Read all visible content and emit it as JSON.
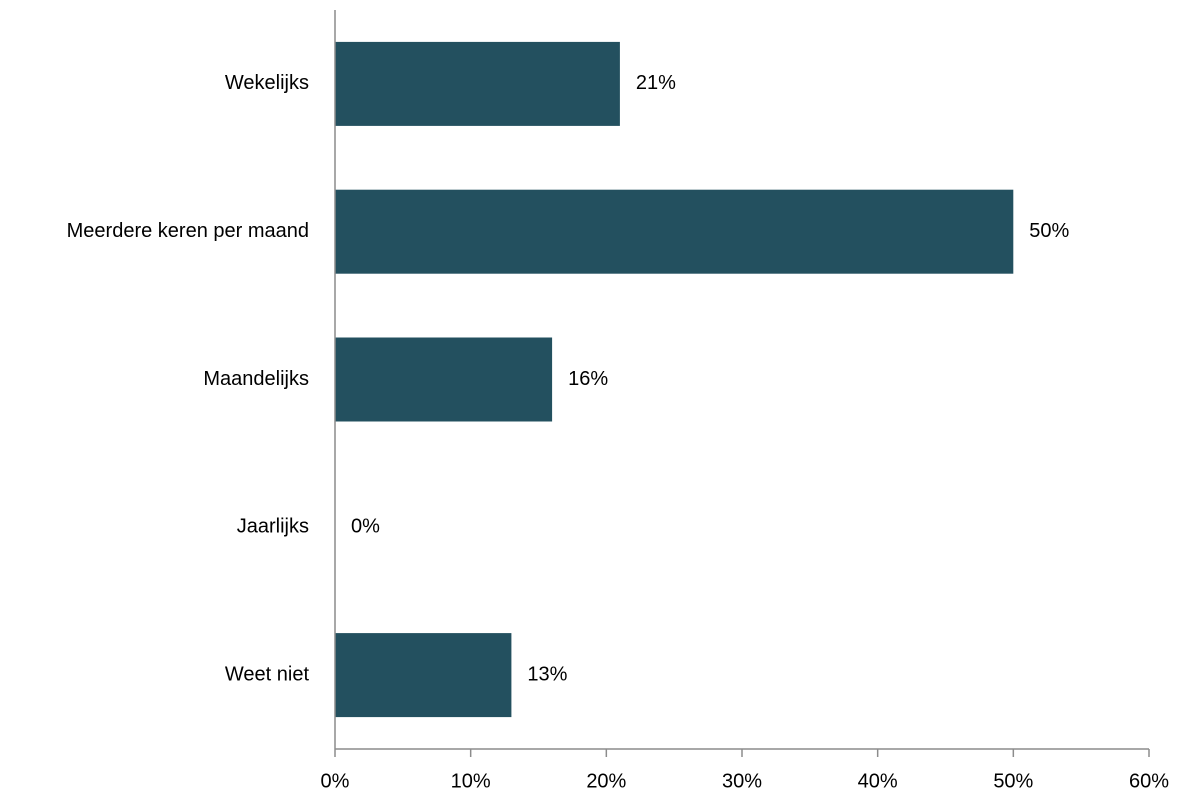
{
  "chart_data": {
    "type": "bar",
    "orientation": "horizontal",
    "categories": [
      "Wekelijks",
      "Meerdere keren per maand",
      "Maandelijks",
      "Jaarlijks",
      "Weet niet"
    ],
    "values": [
      21,
      50,
      16,
      0,
      13
    ],
    "data_labels": [
      "21%",
      "50%",
      "16%",
      "0%",
      "13%"
    ],
    "xlim": [
      0,
      60
    ],
    "x_ticks": [
      0,
      10,
      20,
      30,
      40,
      50,
      60
    ],
    "x_tick_labels": [
      "0%",
      "10%",
      "20%",
      "30%",
      "40%",
      "50%",
      "60%"
    ],
    "bar_color": "#23505F",
    "axis_color": "#8C8C8C",
    "grid": false,
    "legend": "none"
  }
}
